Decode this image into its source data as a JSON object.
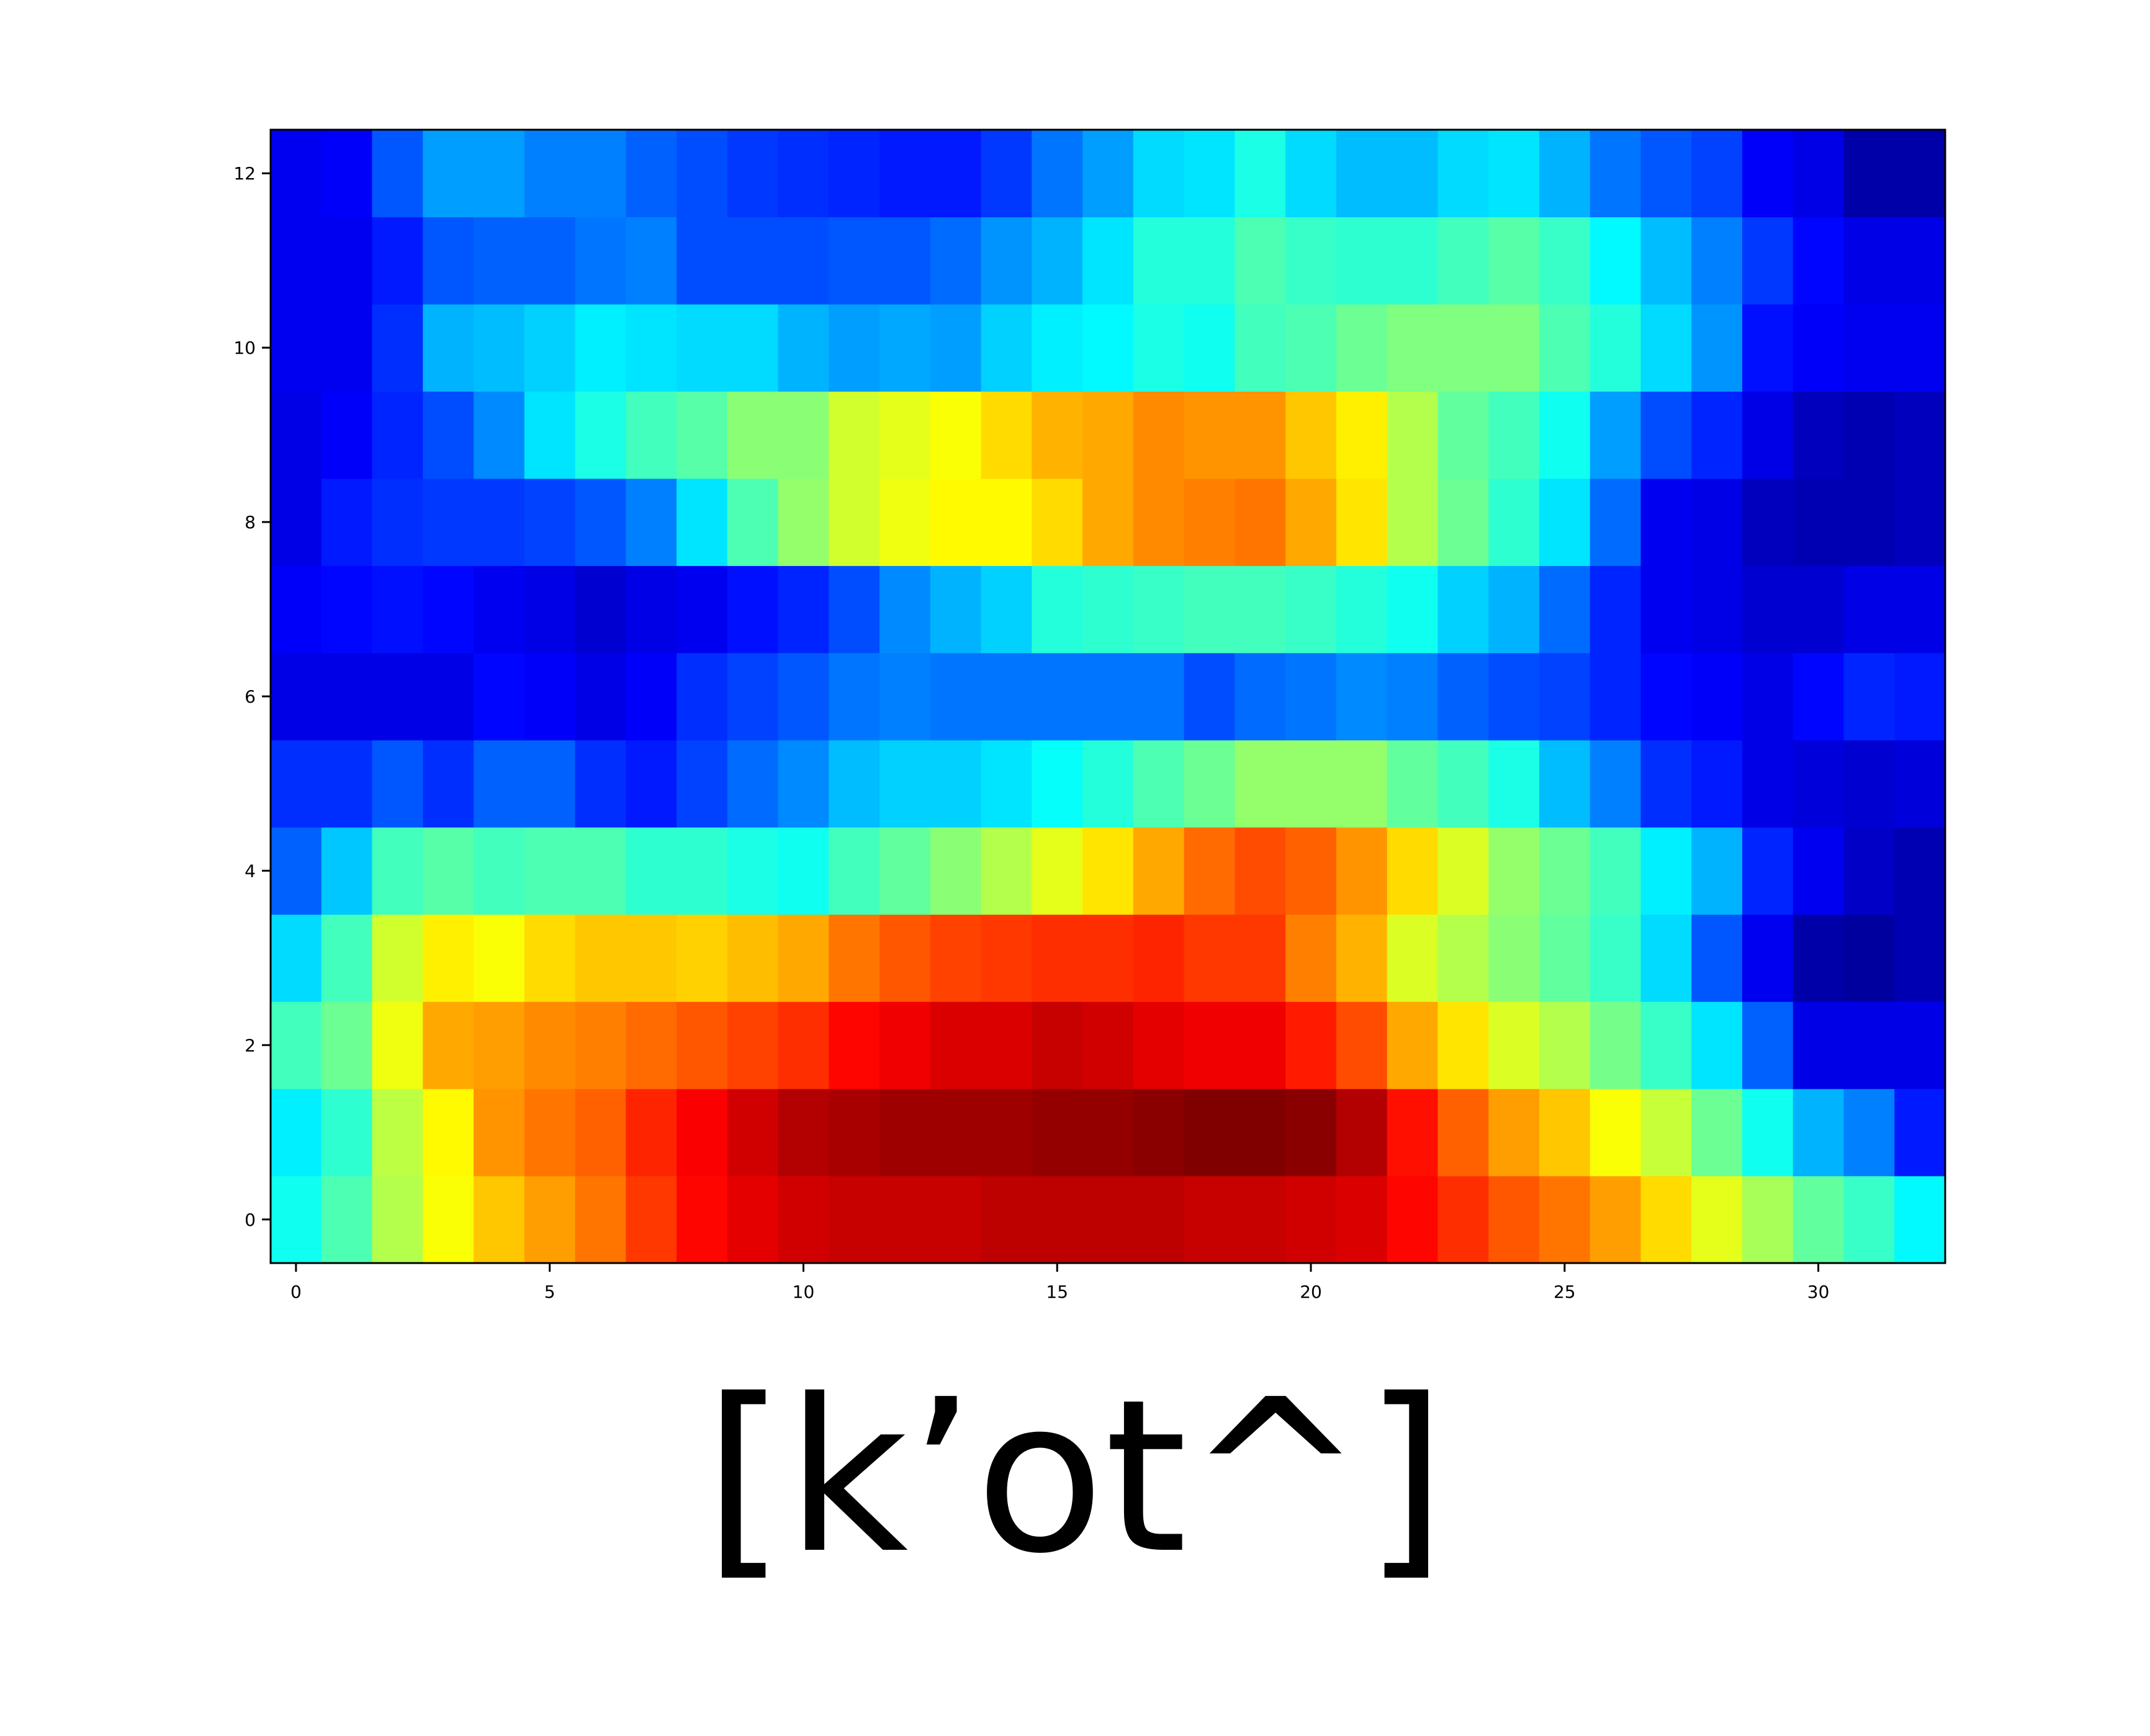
{
  "chart_data": {
    "type": "heatmap",
    "colormap": "jet",
    "value_range": [
      0,
      1
    ],
    "grid": false,
    "x_ticks": [
      0,
      5,
      10,
      15,
      20,
      25,
      30
    ],
    "x_tick_labels": [
      "0",
      "5",
      "10",
      "15",
      "20",
      "25",
      "30"
    ],
    "y_ticks": [
      0,
      2,
      4,
      6,
      8,
      10,
      12
    ],
    "y_tick_labels": [
      "0",
      "2",
      "4",
      "6",
      "8",
      "10",
      "12"
    ],
    "xlim": [
      -0.5,
      32.5
    ],
    "ylim": [
      -0.5,
      12.5
    ],
    "rows_bottom_to_top": [
      [
        0.39,
        0.45,
        0.55,
        0.62,
        0.68,
        0.72,
        0.76,
        0.82,
        0.87,
        0.9,
        0.92,
        0.93,
        0.93,
        0.93,
        0.94,
        0.94,
        0.94,
        0.94,
        0.93,
        0.93,
        0.92,
        0.91,
        0.87,
        0.83,
        0.79,
        0.76,
        0.72,
        0.66,
        0.6,
        0.54,
        0.47,
        0.43,
        0.37
      ],
      [
        0.36,
        0.42,
        0.56,
        0.63,
        0.73,
        0.76,
        0.78,
        0.84,
        0.88,
        0.92,
        0.95,
        0.96,
        0.97,
        0.97,
        0.97,
        0.98,
        0.98,
        0.99,
        1.0,
        1.0,
        0.99,
        0.95,
        0.86,
        0.78,
        0.72,
        0.68,
        0.62,
        0.57,
        0.48,
        0.39,
        0.3,
        0.25,
        0.15
      ]
    ],
    "rows_top_down_labels_note": "",
    "rows": [
      [
        0.39,
        0.45,
        0.55,
        0.62,
        0.68,
        0.72,
        0.76,
        0.82,
        0.87,
        0.9,
        0.92,
        0.93,
        0.93,
        0.93,
        0.94,
        0.94,
        0.94,
        0.94,
        0.93,
        0.93,
        0.92,
        0.91,
        0.87,
        0.83,
        0.79,
        0.76,
        0.72,
        0.66,
        0.6,
        0.54,
        0.47,
        0.43,
        0.37
      ],
      [
        0.36,
        0.42,
        0.56,
        0.63,
        0.73,
        0.76,
        0.78,
        0.84,
        0.88,
        0.92,
        0.95,
        0.96,
        0.97,
        0.97,
        0.97,
        0.98,
        0.98,
        0.99,
        1.0,
        1.0,
        0.99,
        0.95,
        0.86,
        0.78,
        0.72,
        0.68,
        0.62,
        0.57,
        0.48,
        0.39,
        0.3,
        0.25,
        0.15
      ],
      [
        0.44,
        0.48,
        0.61,
        0.71,
        0.72,
        0.74,
        0.75,
        0.77,
        0.79,
        0.81,
        0.83,
        0.87,
        0.89,
        0.91,
        0.91,
        0.93,
        0.92,
        0.9,
        0.89,
        0.89,
        0.85,
        0.8,
        0.71,
        0.65,
        0.59,
        0.55,
        0.49,
        0.43,
        0.35,
        0.22,
        0.1,
        0.1,
        0.1
      ],
      [
        0.34,
        0.44,
        0.58,
        0.64,
        0.62,
        0.66,
        0.68,
        0.68,
        0.67,
        0.69,
        0.71,
        0.76,
        0.79,
        0.81,
        0.82,
        0.83,
        0.83,
        0.84,
        0.82,
        0.82,
        0.75,
        0.7,
        0.59,
        0.55,
        0.51,
        0.47,
        0.43,
        0.34,
        0.21,
        0.11,
        0.04,
        0.03,
        0.05
      ],
      [
        0.22,
        0.32,
        0.44,
        0.46,
        0.44,
        0.45,
        0.45,
        0.42,
        0.42,
        0.4,
        0.39,
        0.44,
        0.47,
        0.51,
        0.55,
        0.6,
        0.65,
        0.71,
        0.77,
        0.8,
        0.78,
        0.73,
        0.66,
        0.59,
        0.52,
        0.48,
        0.44,
        0.36,
        0.3,
        0.16,
        0.11,
        0.07,
        0.05
      ],
      [
        0.17,
        0.17,
        0.21,
        0.17,
        0.22,
        0.22,
        0.17,
        0.15,
        0.19,
        0.23,
        0.26,
        0.31,
        0.33,
        0.33,
        0.35,
        0.38,
        0.41,
        0.45,
        0.48,
        0.52,
        0.52,
        0.52,
        0.47,
        0.44,
        0.4,
        0.31,
        0.25,
        0.17,
        0.15,
        0.1,
        0.09,
        0.08,
        0.09
      ],
      [
        0.1,
        0.1,
        0.1,
        0.1,
        0.13,
        0.12,
        0.1,
        0.12,
        0.17,
        0.19,
        0.21,
        0.24,
        0.25,
        0.24,
        0.24,
        0.24,
        0.24,
        0.24,
        0.2,
        0.23,
        0.24,
        0.26,
        0.25,
        0.22,
        0.2,
        0.19,
        0.16,
        0.13,
        0.12,
        0.1,
        0.13,
        0.16,
        0.15
      ],
      [
        0.12,
        0.13,
        0.14,
        0.13,
        0.11,
        0.1,
        0.08,
        0.1,
        0.11,
        0.14,
        0.16,
        0.2,
        0.26,
        0.3,
        0.33,
        0.41,
        0.42,
        0.43,
        0.44,
        0.44,
        0.43,
        0.41,
        0.39,
        0.33,
        0.3,
        0.23,
        0.16,
        0.11,
        0.1,
        0.08,
        0.08,
        0.1,
        0.1
      ],
      [
        0.1,
        0.15,
        0.17,
        0.18,
        0.18,
        0.19,
        0.21,
        0.25,
        0.35,
        0.45,
        0.52,
        0.58,
        0.61,
        0.63,
        0.63,
        0.66,
        0.71,
        0.74,
        0.75,
        0.76,
        0.71,
        0.65,
        0.55,
        0.48,
        0.42,
        0.35,
        0.23,
        0.11,
        0.1,
        0.06,
        0.05,
        0.05,
        0.06
      ],
      [
        0.1,
        0.12,
        0.16,
        0.2,
        0.26,
        0.35,
        0.4,
        0.44,
        0.46,
        0.51,
        0.51,
        0.58,
        0.6,
        0.62,
        0.66,
        0.7,
        0.71,
        0.74,
        0.73,
        0.73,
        0.68,
        0.64,
        0.55,
        0.47,
        0.44,
        0.39,
        0.28,
        0.2,
        0.16,
        0.1,
        0.06,
        0.05,
        0.06
      ],
      [
        0.11,
        0.11,
        0.17,
        0.3,
        0.31,
        0.33,
        0.36,
        0.35,
        0.34,
        0.34,
        0.3,
        0.28,
        0.29,
        0.28,
        0.33,
        0.36,
        0.37,
        0.4,
        0.39,
        0.44,
        0.45,
        0.48,
        0.5,
        0.5,
        0.5,
        0.45,
        0.41,
        0.34,
        0.27,
        0.14,
        0.12,
        0.11,
        0.11
      ],
      [
        0.11,
        0.11,
        0.15,
        0.21,
        0.22,
        0.22,
        0.24,
        0.25,
        0.2,
        0.2,
        0.2,
        0.21,
        0.21,
        0.23,
        0.27,
        0.3,
        0.35,
        0.41,
        0.41,
        0.45,
        0.43,
        0.42,
        0.42,
        0.44,
        0.46,
        0.43,
        0.37,
        0.31,
        0.25,
        0.18,
        0.13,
        0.1,
        0.1
      ],
      [
        0.11,
        0.12,
        0.21,
        0.28,
        0.28,
        0.25,
        0.25,
        0.22,
        0.2,
        0.18,
        0.17,
        0.16,
        0.15,
        0.15,
        0.18,
        0.24,
        0.28,
        0.34,
        0.35,
        0.4,
        0.34,
        0.31,
        0.31,
        0.34,
        0.35,
        0.3,
        0.24,
        0.21,
        0.19,
        0.12,
        0.1,
        0.04,
        0.04
      ]
    ]
  },
  "caption": {
    "text": "[k’ot^]"
  }
}
